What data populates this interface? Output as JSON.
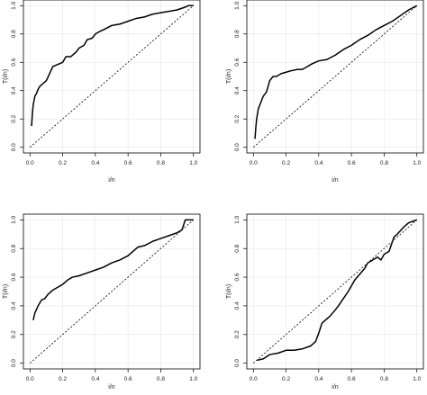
{
  "chart_data": [
    {
      "type": "line",
      "xlabel": "i/n",
      "ylabel": "T(i/n)",
      "xlim": [
        0,
        1
      ],
      "ylim": [
        0,
        1
      ],
      "xticks": [
        "0.0",
        "0.2",
        "0.4",
        "0.6",
        "0.8",
        "1.0"
      ],
      "yticks": [
        "0.0",
        "0.2",
        "0.4",
        "0.6",
        "0.8",
        "1.0"
      ],
      "grid": true,
      "series": [
        {
          "style": "solid",
          "x": [
            0.01,
            0.015,
            0.02,
            0.03,
            0.04,
            0.05,
            0.06,
            0.08,
            0.1,
            0.12,
            0.14,
            0.16,
            0.2,
            0.22,
            0.25,
            0.28,
            0.3,
            0.33,
            0.35,
            0.38,
            0.4,
            0.43,
            0.45,
            0.5,
            0.55,
            0.6,
            0.65,
            0.7,
            0.75,
            0.8,
            0.85,
            0.9,
            0.95,
            0.97,
            1.0
          ],
          "y": [
            0.15,
            0.24,
            0.3,
            0.36,
            0.38,
            0.41,
            0.43,
            0.45,
            0.47,
            0.52,
            0.57,
            0.58,
            0.6,
            0.64,
            0.64,
            0.67,
            0.7,
            0.72,
            0.76,
            0.77,
            0.8,
            0.82,
            0.83,
            0.86,
            0.87,
            0.89,
            0.91,
            0.92,
            0.94,
            0.95,
            0.96,
            0.97,
            0.99,
            1.0,
            1.0
          ]
        },
        {
          "style": "dashed",
          "x": [
            0,
            1
          ],
          "y": [
            0,
            1
          ]
        }
      ]
    },
    {
      "type": "line",
      "xlabel": "i/n",
      "ylabel": "T(i/n)",
      "xlim": [
        0,
        1
      ],
      "ylim": [
        0,
        1
      ],
      "xticks": [
        "0.0",
        "0.2",
        "0.4",
        "0.6",
        "0.8",
        "1.0"
      ],
      "yticks": [
        "0.0",
        "0.2",
        "0.4",
        "0.6",
        "0.8",
        "1.0"
      ],
      "grid": true,
      "series": [
        {
          "style": "solid",
          "x": [
            0.01,
            0.015,
            0.02,
            0.03,
            0.04,
            0.06,
            0.08,
            0.1,
            0.12,
            0.14,
            0.17,
            0.2,
            0.23,
            0.27,
            0.3,
            0.33,
            0.36,
            0.4,
            0.45,
            0.5,
            0.55,
            0.6,
            0.65,
            0.7,
            0.75,
            0.8,
            0.85,
            0.9,
            0.95,
            1.0
          ],
          "y": [
            0.06,
            0.14,
            0.2,
            0.27,
            0.3,
            0.36,
            0.39,
            0.47,
            0.5,
            0.5,
            0.52,
            0.53,
            0.54,
            0.55,
            0.55,
            0.57,
            0.59,
            0.61,
            0.62,
            0.65,
            0.69,
            0.72,
            0.76,
            0.79,
            0.83,
            0.86,
            0.89,
            0.93,
            0.97,
            1.0
          ]
        },
        {
          "style": "dashed",
          "x": [
            0,
            1
          ],
          "y": [
            0,
            1
          ]
        }
      ]
    },
    {
      "type": "line",
      "xlabel": "i/n",
      "ylabel": "T(i/n)",
      "xlim": [
        0,
        1
      ],
      "ylim": [
        0,
        1
      ],
      "xticks": [
        "0.0",
        "0.2",
        "0.4",
        "0.6",
        "0.8",
        "1.0"
      ],
      "yticks": [
        "0.0",
        "0.2",
        "0.4",
        "0.6",
        "0.8",
        "1.0"
      ],
      "grid": true,
      "series": [
        {
          "style": "solid",
          "x": [
            0.02,
            0.03,
            0.05,
            0.07,
            0.09,
            0.11,
            0.14,
            0.17,
            0.2,
            0.23,
            0.26,
            0.3,
            0.35,
            0.4,
            0.45,
            0.5,
            0.55,
            0.6,
            0.63,
            0.66,
            0.7,
            0.75,
            0.8,
            0.85,
            0.9,
            0.93,
            0.95,
            1.0
          ],
          "y": [
            0.3,
            0.35,
            0.4,
            0.44,
            0.45,
            0.48,
            0.51,
            0.53,
            0.55,
            0.58,
            0.6,
            0.61,
            0.63,
            0.65,
            0.67,
            0.7,
            0.72,
            0.75,
            0.78,
            0.81,
            0.82,
            0.85,
            0.87,
            0.89,
            0.91,
            0.93,
            1.0,
            1.0
          ]
        },
        {
          "style": "dashed",
          "x": [
            0,
            1
          ],
          "y": [
            0,
            1
          ]
        }
      ]
    },
    {
      "type": "line",
      "xlabel": "i/n",
      "ylabel": "T(i/n)",
      "xlim": [
        0,
        1
      ],
      "ylim": [
        0,
        1
      ],
      "xticks": [
        "0.0",
        "0.2",
        "0.4",
        "0.6",
        "0.8",
        "1.0"
      ],
      "yticks": [
        "0.0",
        "0.2",
        "0.4",
        "0.6",
        "0.8",
        "1.0"
      ],
      "grid": true,
      "series": [
        {
          "style": "solid",
          "x": [
            0.02,
            0.06,
            0.1,
            0.15,
            0.2,
            0.25,
            0.3,
            0.35,
            0.38,
            0.4,
            0.42,
            0.45,
            0.47,
            0.5,
            0.52,
            0.55,
            0.58,
            0.6,
            0.62,
            0.65,
            0.68,
            0.7,
            0.73,
            0.76,
            0.78,
            0.8,
            0.83,
            0.86,
            0.88,
            0.92,
            0.95,
            1.0
          ],
          "y": [
            0.02,
            0.03,
            0.06,
            0.07,
            0.09,
            0.09,
            0.1,
            0.12,
            0.15,
            0.21,
            0.28,
            0.31,
            0.33,
            0.37,
            0.4,
            0.45,
            0.5,
            0.54,
            0.58,
            0.62,
            0.66,
            0.7,
            0.72,
            0.74,
            0.72,
            0.76,
            0.78,
            0.88,
            0.9,
            0.95,
            0.98,
            1.0
          ]
        },
        {
          "style": "dashed",
          "x": [
            0,
            1
          ],
          "y": [
            0,
            1
          ]
        }
      ]
    }
  ]
}
